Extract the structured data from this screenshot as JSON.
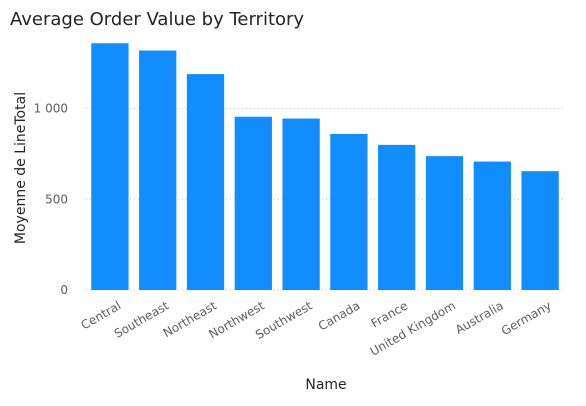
{
  "chart_data": {
    "type": "bar",
    "title": "Average Order Value by Territory",
    "xlabel": "Name",
    "ylabel": "Moyenne de LineTotal",
    "categories": [
      "Central",
      "Southeast",
      "Northeast",
      "Northwest",
      "Southwest",
      "Canada",
      "France",
      "United Kingdom",
      "Australia",
      "Germany"
    ],
    "series": [
      {
        "values": [
          1360,
          1320,
          1190,
          955,
          945,
          860,
          800,
          738,
          708,
          655
        ]
      }
    ],
    "yticks": [
      0,
      500,
      1000
    ],
    "ytick_labels": [
      "0",
      "500",
      "1 000"
    ],
    "ylim": [
      0,
      1400
    ],
    "grid": true,
    "bar_color": "#118dff"
  }
}
